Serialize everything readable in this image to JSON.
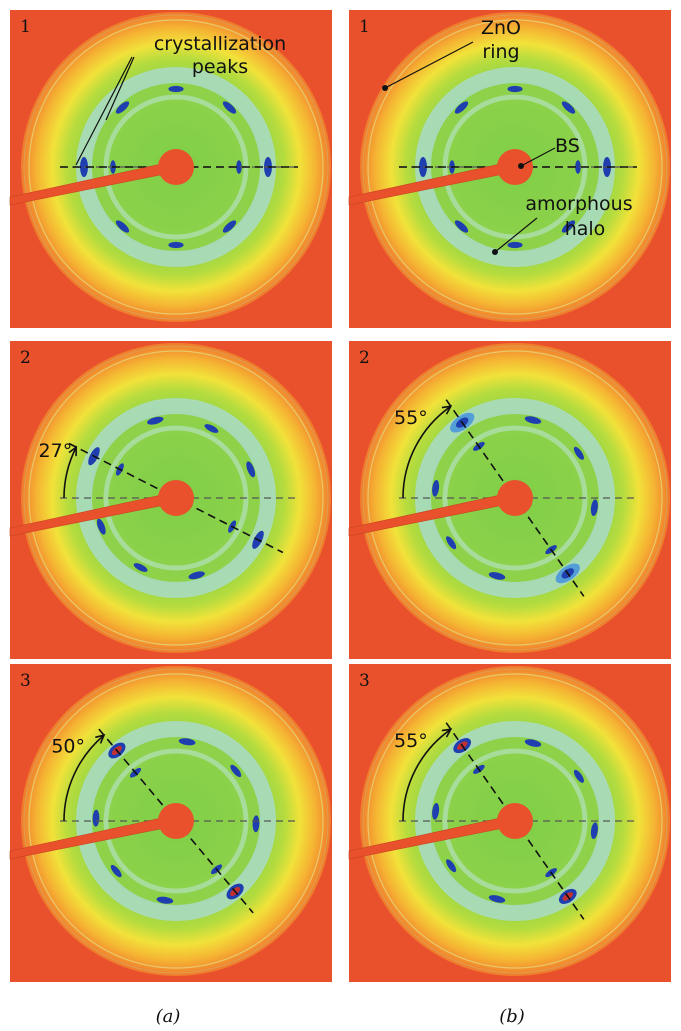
{
  "colors": {
    "background": "#e8512c",
    "ring_outer": "#f07a2c",
    "ring_yellow": "#f5e23a",
    "ring_lime": "#c8e03c",
    "field_green": "#8fd24a",
    "halo": "#a9dcc8",
    "peak": "#1f3fb0",
    "peak_core": "#c23030",
    "beamstop": "#e8512c",
    "annotation": "#111111"
  },
  "panels": [
    {
      "id": "a1",
      "index_label": "1",
      "column": "a",
      "row": 1,
      "angle_text": null,
      "angle_deg": 0,
      "annotations": [
        {
          "key": "crystallization_peaks",
          "lines": [
            "crystallization",
            "peaks"
          ]
        }
      ]
    },
    {
      "id": "b1",
      "index_label": "1",
      "column": "b",
      "row": 1,
      "angle_text": null,
      "angle_deg": 0,
      "annotations": [
        {
          "key": "zno_ring",
          "lines": [
            "ZnO",
            "ring"
          ]
        },
        {
          "key": "beamstop",
          "lines": [
            "BS"
          ]
        },
        {
          "key": "amorphous_halo",
          "lines": [
            "amorphous",
            "halo"
          ]
        }
      ]
    },
    {
      "id": "a2",
      "index_label": "2",
      "column": "a",
      "row": 2,
      "angle_text": "27°",
      "angle_deg": 27,
      "annotations": []
    },
    {
      "id": "b2",
      "index_label": "2",
      "column": "b",
      "row": 2,
      "angle_text": "55°",
      "angle_deg": 55,
      "annotations": []
    },
    {
      "id": "a3",
      "index_label": "3",
      "column": "a",
      "row": 3,
      "angle_text": "50°",
      "angle_deg": 50,
      "annotations": []
    },
    {
      "id": "b3",
      "index_label": "3",
      "column": "b",
      "row": 3,
      "angle_text": "55°",
      "angle_deg": 55,
      "annotations": []
    }
  ],
  "captions": {
    "a": "(a)",
    "b": "(b)"
  }
}
